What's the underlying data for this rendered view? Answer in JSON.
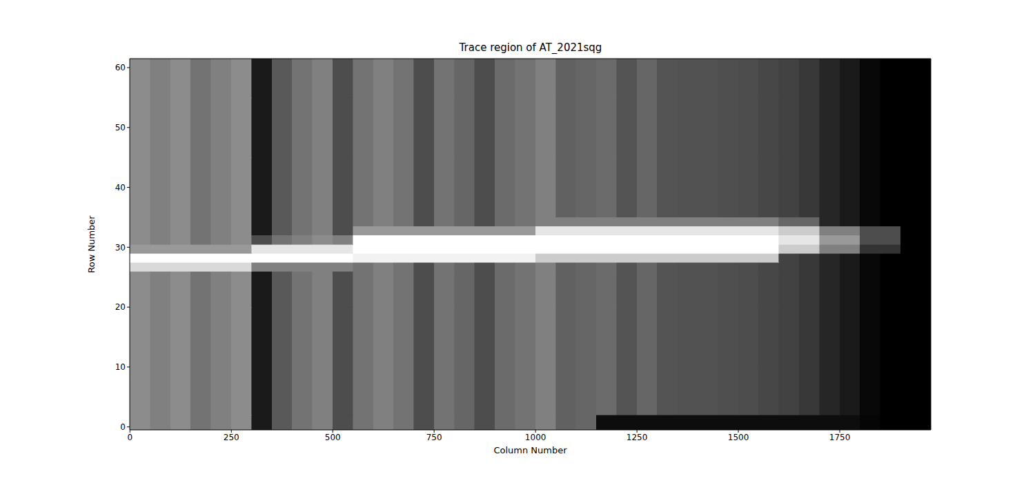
{
  "chart_data": {
    "type": "heatmap",
    "title": "Trace region of AT_2021sqg",
    "x_label": "Column Number",
    "y_label": "Row Number",
    "xlim": [
      -0.5,
      1974.5
    ],
    "ylim": [
      -0.5,
      61.5
    ],
    "xticks": [
      0,
      250,
      500,
      750,
      1000,
      1250,
      1500,
      1750
    ],
    "yticks": [
      0,
      10,
      20,
      30,
      40,
      50,
      60
    ],
    "grid": false,
    "color": "gray",
    "zlim": [
      0,
      1
    ],
    "x_edges": [
      -0.5,
      50,
      100,
      150,
      200,
      250,
      300,
      350,
      400,
      450,
      500,
      550,
      600,
      650,
      700,
      750,
      800,
      850,
      900,
      950,
      1000,
      1050,
      1100,
      1150,
      1200,
      1250,
      1300,
      1350,
      1400,
      1450,
      1500,
      1550,
      1600,
      1650,
      1700,
      1750,
      1800,
      1850,
      1900,
      1950,
      1974.5
    ],
    "y_edges": [
      -0.5,
      2,
      10,
      20,
      26,
      27.5,
      29,
      30.5,
      32,
      33.5,
      35,
      45,
      55,
      61.5
    ],
    "cells": [
      [
        0.55,
        0.5,
        0.55,
        0.45,
        0.5,
        0.55,
        0.1,
        0.35,
        0.45,
        0.5,
        0.3,
        0.45,
        0.5,
        0.45,
        0.3,
        0.45,
        0.4,
        0.3,
        0.42,
        0.45,
        0.5,
        0.38,
        0.4,
        0.05,
        0.05,
        0.05,
        0.05,
        0.05,
        0.05,
        0.05,
        0.05,
        0.05,
        0.05,
        0.05,
        0.05,
        0.05,
        0.02,
        0,
        0,
        0
      ],
      [
        0.55,
        0.5,
        0.55,
        0.45,
        0.5,
        0.55,
        0.1,
        0.35,
        0.45,
        0.5,
        0.3,
        0.45,
        0.5,
        0.45,
        0.3,
        0.45,
        0.4,
        0.3,
        0.42,
        0.45,
        0.5,
        0.38,
        0.4,
        0.42,
        0.33,
        0.4,
        0.33,
        0.32,
        0.32,
        0.31,
        0.3,
        0.28,
        0.26,
        0.22,
        0.15,
        0.1,
        0.03,
        0,
        0,
        0
      ],
      [
        0.55,
        0.5,
        0.55,
        0.45,
        0.5,
        0.55,
        0.1,
        0.35,
        0.45,
        0.5,
        0.3,
        0.45,
        0.5,
        0.45,
        0.3,
        0.45,
        0.4,
        0.3,
        0.42,
        0.45,
        0.5,
        0.38,
        0.4,
        0.42,
        0.33,
        0.4,
        0.33,
        0.32,
        0.32,
        0.31,
        0.3,
        0.28,
        0.26,
        0.22,
        0.15,
        0.1,
        0.03,
        0,
        0,
        0
      ],
      [
        0.55,
        0.5,
        0.55,
        0.45,
        0.5,
        0.55,
        0.1,
        0.35,
        0.45,
        0.5,
        0.3,
        0.45,
        0.5,
        0.45,
        0.3,
        0.45,
        0.4,
        0.3,
        0.42,
        0.45,
        0.5,
        0.38,
        0.4,
        0.42,
        0.33,
        0.4,
        0.33,
        0.32,
        0.32,
        0.31,
        0.3,
        0.28,
        0.26,
        0.22,
        0.15,
        0.1,
        0.03,
        0,
        0,
        0
      ],
      [
        0.85,
        0.85,
        0.85,
        0.85,
        0.85,
        0.85,
        0.5,
        0.5,
        0.5,
        0.5,
        0.5,
        0.45,
        0.5,
        0.45,
        0.3,
        0.45,
        0.4,
        0.3,
        0.42,
        0.45,
        0.5,
        0.38,
        0.4,
        0.42,
        0.33,
        0.4,
        0.33,
        0.32,
        0.32,
        0.31,
        0.3,
        0.28,
        0.26,
        0.22,
        0.15,
        0.1,
        0.03,
        0,
        0,
        0
      ],
      [
        1,
        1,
        1,
        1,
        1,
        1,
        1,
        1,
        1,
        1,
        1,
        0.95,
        0.95,
        0.95,
        0.95,
        0.95,
        0.95,
        0.95,
        0.95,
        0.95,
        0.8,
        0.8,
        0.8,
        0.8,
        0.8,
        0.8,
        0.8,
        0.8,
        0.8,
        0.8,
        0.8,
        0.8,
        0.26,
        0.22,
        0.15,
        0.1,
        0.03,
        0,
        0,
        0
      ],
      [
        0.6,
        0.6,
        0.6,
        0.6,
        0.6,
        0.6,
        0.9,
        0.9,
        0.9,
        0.9,
        0.9,
        1,
        1,
        1,
        1,
        1,
        1,
        1,
        1,
        1,
        1,
        1,
        1,
        1,
        1,
        1,
        1,
        1,
        1,
        1,
        1,
        1,
        0.8,
        0.8,
        0.5,
        0.5,
        0.2,
        0.2,
        0,
        0
      ],
      [
        0.55,
        0.5,
        0.55,
        0.45,
        0.5,
        0.55,
        0.3,
        0.45,
        0.5,
        0.55,
        0.5,
        1,
        1,
        1,
        1,
        1,
        1,
        1,
        1,
        1,
        1,
        1,
        1,
        1,
        1,
        1,
        1,
        1,
        1,
        1,
        1,
        1,
        0.9,
        0.9,
        0.6,
        0.6,
        0.3,
        0.3,
        0,
        0
      ],
      [
        0.55,
        0.5,
        0.55,
        0.45,
        0.5,
        0.55,
        0.1,
        0.35,
        0.45,
        0.5,
        0.3,
        0.6,
        0.6,
        0.6,
        0.6,
        0.6,
        0.6,
        0.6,
        0.6,
        0.6,
        0.9,
        0.9,
        0.9,
        0.9,
        0.9,
        0.9,
        0.9,
        0.9,
        0.9,
        0.9,
        0.9,
        0.9,
        0.8,
        0.8,
        0.5,
        0.5,
        0.3,
        0.3,
        0,
        0
      ],
      [
        0.55,
        0.5,
        0.55,
        0.45,
        0.5,
        0.55,
        0.1,
        0.35,
        0.45,
        0.5,
        0.3,
        0.45,
        0.5,
        0.45,
        0.3,
        0.45,
        0.4,
        0.3,
        0.42,
        0.45,
        0.5,
        0.5,
        0.5,
        0.5,
        0.5,
        0.5,
        0.5,
        0.5,
        0.5,
        0.5,
        0.5,
        0.5,
        0.4,
        0.4,
        0.15,
        0.1,
        0.03,
        0,
        0,
        0
      ],
      [
        0.55,
        0.5,
        0.55,
        0.45,
        0.5,
        0.55,
        0.1,
        0.35,
        0.45,
        0.5,
        0.3,
        0.45,
        0.5,
        0.45,
        0.3,
        0.45,
        0.4,
        0.3,
        0.42,
        0.45,
        0.5,
        0.38,
        0.4,
        0.42,
        0.33,
        0.4,
        0.33,
        0.32,
        0.32,
        0.31,
        0.3,
        0.28,
        0.26,
        0.22,
        0.15,
        0.1,
        0.03,
        0,
        0,
        0
      ],
      [
        0.55,
        0.5,
        0.55,
        0.45,
        0.5,
        0.55,
        0.1,
        0.35,
        0.45,
        0.5,
        0.3,
        0.45,
        0.5,
        0.45,
        0.3,
        0.45,
        0.4,
        0.3,
        0.42,
        0.45,
        0.5,
        0.38,
        0.4,
        0.42,
        0.33,
        0.4,
        0.33,
        0.32,
        0.32,
        0.31,
        0.3,
        0.28,
        0.26,
        0.22,
        0.15,
        0.1,
        0.03,
        0,
        0,
        0
      ],
      [
        0.55,
        0.5,
        0.55,
        0.45,
        0.5,
        0.55,
        0.1,
        0.35,
        0.45,
        0.5,
        0.3,
        0.45,
        0.5,
        0.45,
        0.3,
        0.45,
        0.4,
        0.3,
        0.42,
        0.45,
        0.5,
        0.38,
        0.4,
        0.42,
        0.33,
        0.4,
        0.33,
        0.32,
        0.32,
        0.31,
        0.3,
        0.28,
        0.26,
        0.22,
        0.15,
        0.1,
        0.03,
        0,
        0,
        0
      ]
    ]
  }
}
